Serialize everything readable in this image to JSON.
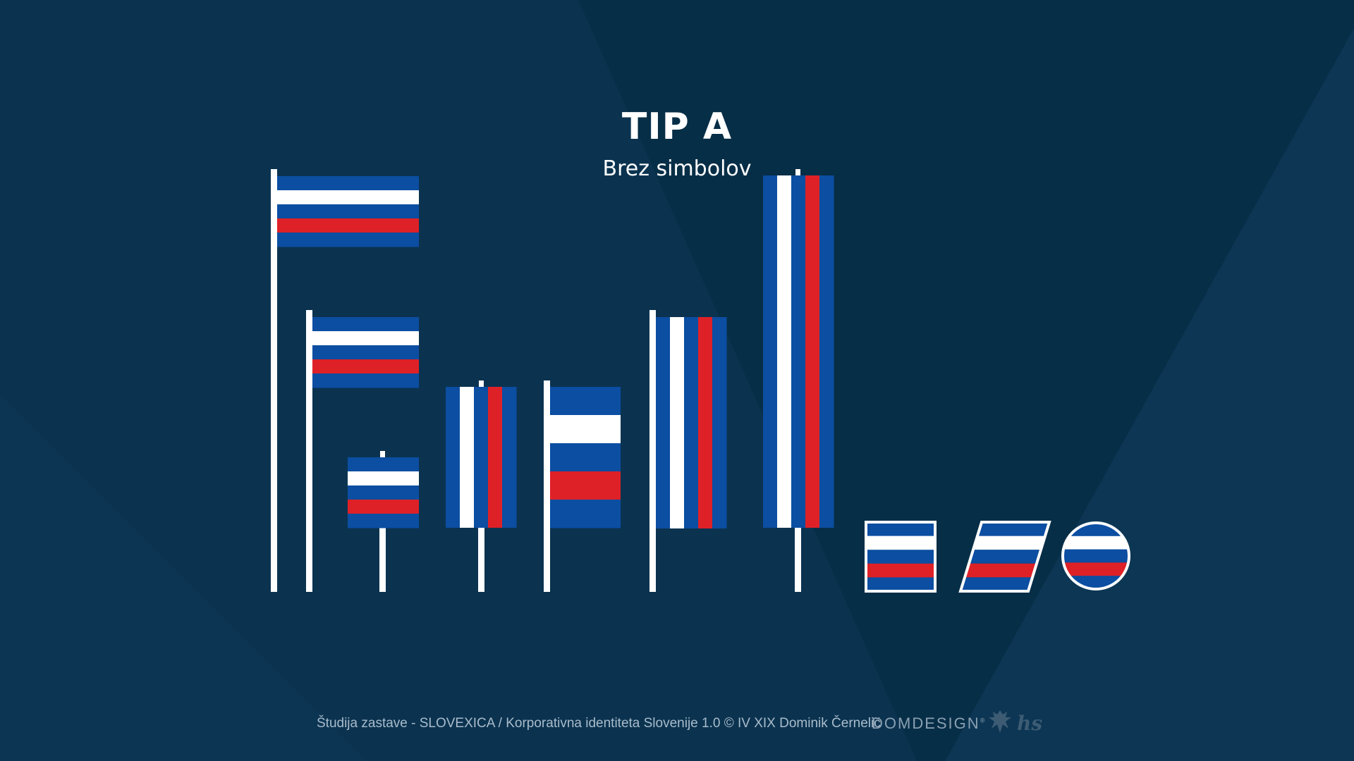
{
  "title": "TIP A",
  "subtitle": "Brez simbolov",
  "footer": "Študija zastave - SLOVEXICA / Korporativna identiteta Slovenije 1.0 © IV XIX Dominik Černelič",
  "brand": {
    "name": "DOMDESIGN",
    "mark": "®",
    "secondary_logo": "hs"
  },
  "colors": {
    "background": "#0b3350",
    "blue": "#0b4ea2",
    "white": "#ffffff",
    "red": "#de2127",
    "pole": "#ffffff"
  },
  "flag_pattern": [
    "blue",
    "white",
    "blue",
    "red",
    "blue"
  ],
  "flag_variants": [
    {
      "name": "horizontal-flag-tall-pole",
      "orientation": "horizontal"
    },
    {
      "name": "horizontal-flag-medium-pole",
      "orientation": "horizontal"
    },
    {
      "name": "horizontal-small-banner",
      "orientation": "horizontal"
    },
    {
      "name": "vertical-banner-small",
      "orientation": "vertical"
    },
    {
      "name": "horizontal-side-banner",
      "orientation": "horizontal"
    },
    {
      "name": "vertical-banner-medium",
      "orientation": "vertical"
    },
    {
      "name": "vertical-banner-tall",
      "orientation": "vertical"
    },
    {
      "name": "square-flag-badge",
      "orientation": "horizontal"
    },
    {
      "name": "parallelogram-flag-badge",
      "orientation": "horizontal"
    },
    {
      "name": "circle-flag-badge",
      "orientation": "horizontal"
    }
  ]
}
